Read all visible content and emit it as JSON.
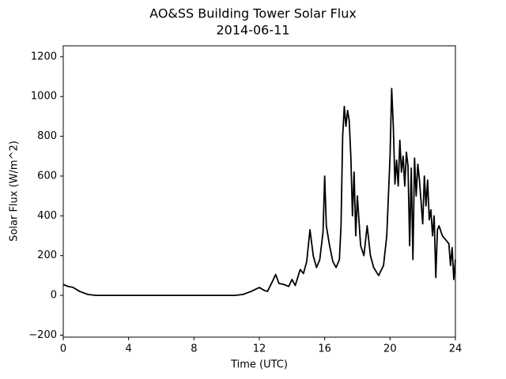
{
  "chart_data": {
    "type": "line",
    "title": "AO&SS Building Tower Solar Flux",
    "subtitle": "2014-06-11",
    "x_label": "Time (UTC)",
    "y_label": "Solar Flux (W/m^2)",
    "xlim": [
      0,
      24
    ],
    "xticks": [
      0,
      4,
      8,
      12,
      16,
      20,
      24
    ],
    "ylim": [
      -210,
      1255
    ],
    "yticks": [
      {
        "value": -200,
        "label": "−200"
      },
      0,
      200,
      400,
      600,
      800,
      1000,
      1200
    ],
    "series": [
      {
        "color": "#000000",
        "x": [
          0,
          0.3,
          0.6,
          1.0,
          1.5,
          2,
          4,
          6,
          8,
          10,
          10.5,
          11,
          11.5,
          12,
          12.3,
          12.5,
          12.8,
          13,
          13.2,
          13.5,
          13.8,
          14,
          14.2,
          14.5,
          14.7,
          14.9,
          15.1,
          15.3,
          15.5,
          15.7,
          15.9,
          16.0,
          16.1,
          16.3,
          16.5,
          16.7,
          16.9,
          17.0,
          17.1,
          17.2,
          17.3,
          17.4,
          17.5,
          17.6,
          17.7,
          17.8,
          17.9,
          18.0,
          18.2,
          18.4,
          18.6,
          18.8,
          19.0,
          19.3,
          19.6,
          19.8,
          20.0,
          20.1,
          20.2,
          20.3,
          20.4,
          20.5,
          20.6,
          20.7,
          20.8,
          20.9,
          21.0,
          21.1,
          21.2,
          21.3,
          21.4,
          21.5,
          21.6,
          21.7,
          21.8,
          21.9,
          22.0,
          22.1,
          22.2,
          22.3,
          22.4,
          22.5,
          22.6,
          22.7,
          22.8,
          22.9,
          23.0,
          23.2,
          23.4,
          23.6,
          23.7,
          23.8,
          23.9,
          24.0
        ],
        "values": [
          55,
          45,
          40,
          20,
          5,
          0,
          0,
          0,
          0,
          0,
          0,
          5,
          20,
          40,
          25,
          20,
          70,
          105,
          60,
          55,
          45,
          80,
          50,
          130,
          110,
          170,
          330,
          200,
          140,
          180,
          320,
          600,
          350,
          250,
          170,
          140,
          180,
          350,
          800,
          950,
          850,
          930,
          880,
          700,
          400,
          620,
          300,
          500,
          250,
          200,
          350,
          200,
          140,
          100,
          150,
          300,
          700,
          1040,
          850,
          560,
          680,
          550,
          780,
          620,
          700,
          550,
          720,
          650,
          250,
          640,
          180,
          690,
          500,
          660,
          580,
          470,
          360,
          600,
          450,
          580,
          380,
          430,
          300,
          400,
          90,
          330,
          350,
          300,
          280,
          260,
          150,
          240,
          80,
          180
        ]
      }
    ]
  }
}
